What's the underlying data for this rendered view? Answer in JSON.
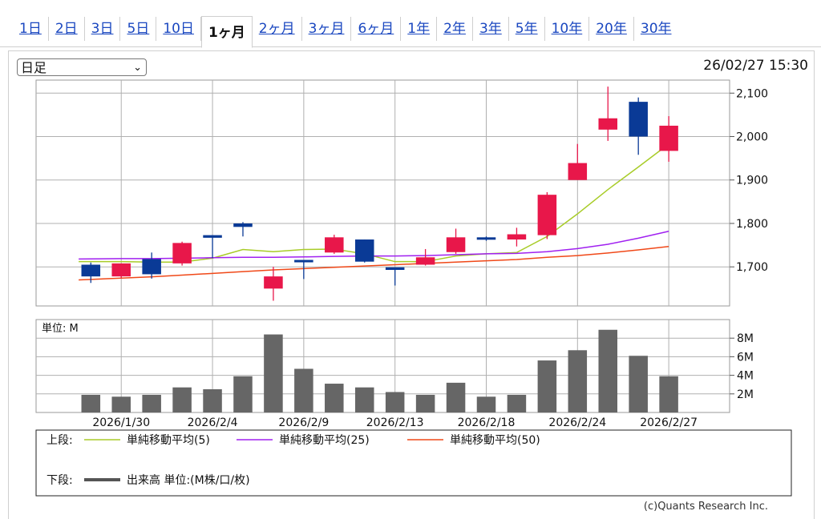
{
  "tabs": [
    "1日",
    "2日",
    "3日",
    "5日",
    "10日",
    "1ヶ月",
    "2ヶ月",
    "3ヶ月",
    "6ヶ月",
    "1年",
    "2年",
    "3年",
    "5年",
    "10年",
    "20年",
    "30年"
  ],
  "active_tab": "1ヶ月",
  "chart_type_select": {
    "selected": "日足"
  },
  "timestamp": "26/02/27 15:30",
  "colors": {
    "up": "#e8174a",
    "down": "#0a3a96",
    "ma5": "#a8cc28",
    "ma25": "#a020f0",
    "ma50": "#f04818",
    "volume": "#666666",
    "grid": "#b0b0b0"
  },
  "chart_data": {
    "type": "candlestick",
    "x_tick_labels": [
      "2026/1/30",
      "2026/2/4",
      "2026/2/9",
      "2026/2/13",
      "2026/2/18",
      "2026/2/24",
      "2026/2/27"
    ],
    "price_ticks": [
      "1,700",
      "1,800",
      "1,900",
      "2,000",
      "2,100"
    ],
    "ylim": [
      1610,
      2130
    ],
    "volume_label": "単位: M",
    "volume_ticks": [
      "2M",
      "4M",
      "6M",
      "8M"
    ],
    "volume_ylim": [
      0,
      10
    ],
    "candles": [
      {
        "open": 1705,
        "high": 1710,
        "low": 1663,
        "close": 1678
      },
      {
        "open": 1678,
        "high": 1708,
        "low": 1674,
        "close": 1708
      },
      {
        "open": 1718,
        "high": 1733,
        "low": 1673,
        "close": 1683
      },
      {
        "open": 1708,
        "high": 1758,
        "low": 1703,
        "close": 1755
      },
      {
        "open": 1773,
        "high": 1773,
        "low": 1720,
        "close": 1767
      },
      {
        "open": 1800,
        "high": 1803,
        "low": 1770,
        "close": 1792
      },
      {
        "open": 1650,
        "high": 1700,
        "low": 1622,
        "close": 1678
      },
      {
        "open": 1716,
        "high": 1716,
        "low": 1672,
        "close": 1712
      },
      {
        "open": 1733,
        "high": 1774,
        "low": 1730,
        "close": 1768
      },
      {
        "open": 1763,
        "high": 1763,
        "low": 1710,
        "close": 1712
      },
      {
        "open": 1699,
        "high": 1699,
        "low": 1657,
        "close": 1693
      },
      {
        "open": 1705,
        "high": 1741,
        "low": 1703,
        "close": 1722
      },
      {
        "open": 1734,
        "high": 1788,
        "low": 1730,
        "close": 1768
      },
      {
        "open": 1768,
        "high": 1770,
        "low": 1760,
        "close": 1763
      },
      {
        "open": 1763,
        "high": 1790,
        "low": 1747,
        "close": 1775
      },
      {
        "open": 1773,
        "high": 1872,
        "low": 1764,
        "close": 1866
      },
      {
        "open": 1900,
        "high": 1983,
        "low": 1900,
        "close": 1939
      },
      {
        "open": 2016,
        "high": 2115,
        "low": 1990,
        "close": 2042
      },
      {
        "open": 2080,
        "high": 2090,
        "low": 1958,
        "close": 2000
      },
      {
        "open": 1967,
        "high": 2047,
        "low": 1942,
        "close": 2025
      }
    ],
    "volume": [
      1.9,
      1.7,
      1.9,
      2.7,
      2.5,
      3.9,
      8.4,
      4.7,
      3.1,
      2.7,
      2.2,
      1.9,
      3.2,
      1.7,
      1.9,
      5.6,
      6.7,
      8.9,
      6.1,
      3.9
    ],
    "series": [
      {
        "name": "単純移動平均(5)",
        "values": [
          1712,
          1712,
          1711,
          1711,
          1720,
          1740,
          1735,
          1740,
          1741,
          1730,
          1712,
          1712,
          1725,
          1730,
          1733,
          1770,
          1822,
          1878,
          1930,
          1983
        ]
      },
      {
        "name": "単純移動平均(25)",
        "values": [
          1718,
          1719,
          1719,
          1720,
          1721,
          1722,
          1722,
          1723,
          1724,
          1725,
          1725,
          1726,
          1728,
          1730,
          1731,
          1735,
          1742,
          1752,
          1766,
          1782
        ]
      },
      {
        "name": "単純移動平均(50)",
        "values": [
          1670,
          1674,
          1677,
          1681,
          1685,
          1689,
          1693,
          1696,
          1699,
          1702,
          1705,
          1708,
          1711,
          1714,
          1717,
          1722,
          1726,
          1732,
          1739,
          1747
        ]
      }
    ]
  },
  "legend": {
    "upper_label": "上段:",
    "lower_label": "下段:",
    "volume_entry": "出来高 単位:(M株/口/枚)"
  },
  "copyright": "(c)Quants Research Inc."
}
